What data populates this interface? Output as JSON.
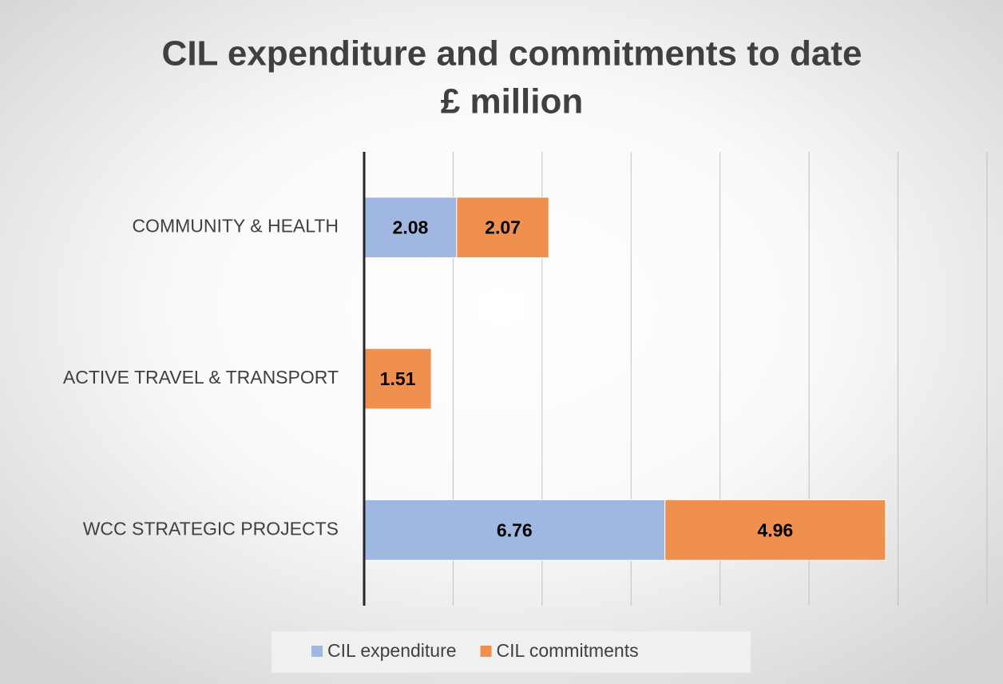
{
  "chart_data": {
    "type": "stacked-barh",
    "title": "CIL expenditure and commitments to date",
    "subtitle": "£ million",
    "categories": [
      "COMMUNITY & HEALTH",
      "ACTIVE TRAVEL & TRANSPORT",
      "WCC STRATEGIC PROJECTS"
    ],
    "series": [
      {
        "name": "CIL expenditure",
        "color": "#a0b7e1",
        "values": [
          2.08,
          null,
          6.76
        ]
      },
      {
        "name": "CIL commitments",
        "color": "#f0904f",
        "values": [
          2.07,
          1.51,
          4.96
        ]
      }
    ],
    "xlim": [
      0,
      14
    ],
    "xticks": [
      0,
      2,
      4,
      6,
      8,
      10,
      12,
      14
    ],
    "grid": true,
    "legend": "bottom"
  }
}
